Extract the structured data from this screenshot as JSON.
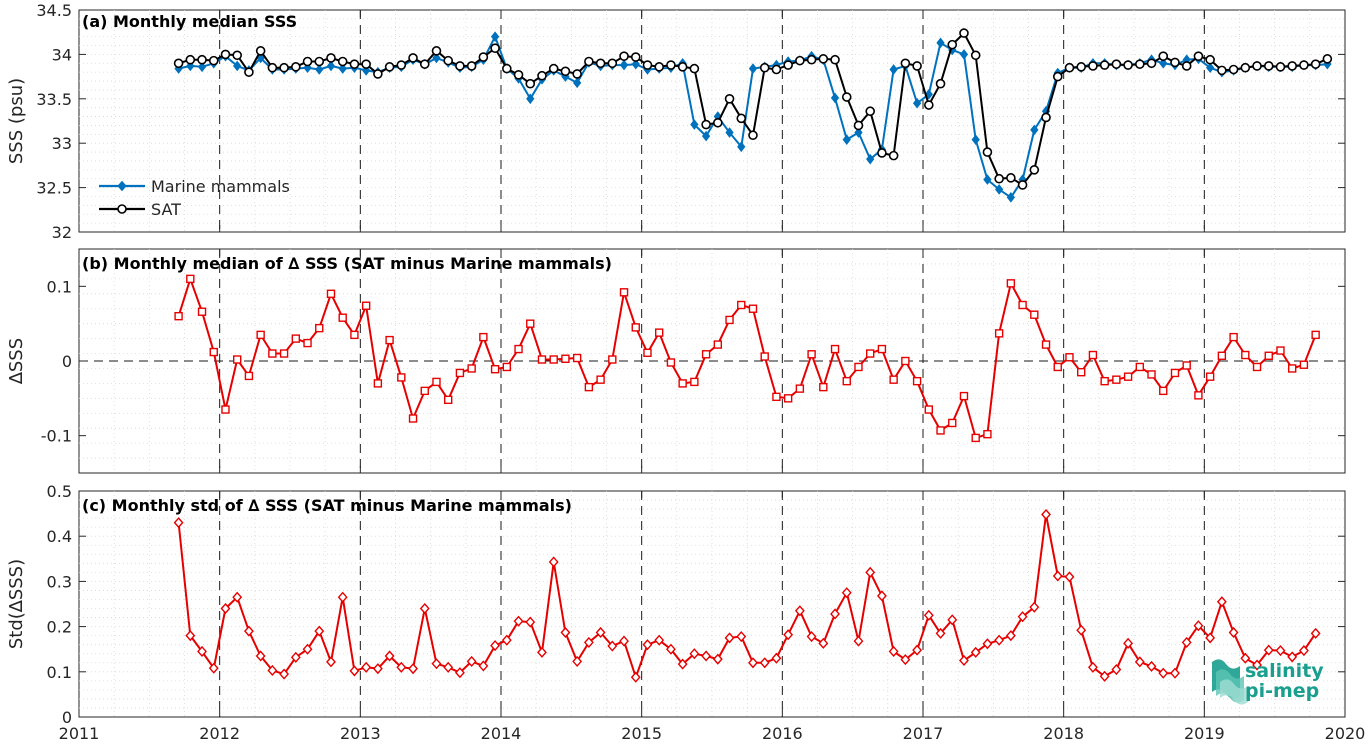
{
  "logo": {
    "line1": "salinity",
    "line2": "pi-mep"
  },
  "colors": {
    "marine": "#0072BD",
    "sat": "#000000",
    "delta": "#E60000",
    "grid": "#d8d8d8",
    "logo": "#1a9e8e"
  },
  "chart_data": [
    {
      "type": "line",
      "title": "(a) Monthly median SSS",
      "xlabel": "",
      "ylabel": "SSS (psu)",
      "xlim": [
        2011,
        2020
      ],
      "ylim": [
        32,
        34.5
      ],
      "yticks": [
        32,
        32.5,
        33,
        33.5,
        34,
        34.5
      ],
      "ytick_labels": [
        "32",
        "32.5",
        "33",
        "33.5",
        "34",
        "34.5"
      ],
      "legend": "bottom-left",
      "grid": true,
      "x_start": 2011.708,
      "x_step_months": 1,
      "series": [
        {
          "name": "Marine mammals",
          "marker": "diamond-filled",
          "values": [
            33.84,
            33.87,
            33.86,
            33.9,
            33.98,
            33.87,
            33.82,
            33.96,
            33.83,
            33.83,
            33.84,
            33.85,
            33.83,
            33.87,
            33.84,
            33.85,
            33.82,
            33.8,
            33.85,
            33.86,
            33.94,
            33.89,
            33.96,
            33.91,
            33.85,
            33.86,
            33.94,
            34.2,
            33.84,
            33.73,
            33.5,
            33.72,
            33.82,
            33.75,
            33.68,
            33.91,
            33.87,
            33.88,
            33.88,
            33.89,
            33.83,
            33.84,
            33.85,
            33.9,
            33.21,
            33.08,
            33.3,
            33.12,
            32.96,
            33.84,
            33.86,
            33.88,
            33.92,
            33.93,
            33.98,
            33.94,
            33.51,
            33.04,
            33.12,
            32.82,
            32.93,
            33.83,
            33.87,
            33.45,
            33.55,
            34.13,
            34.05,
            34.0,
            33.04,
            32.59,
            32.48,
            32.39,
            32.59,
            33.15,
            33.36,
            33.79,
            33.85,
            33.85,
            33.9,
            33.9,
            33.88,
            33.88,
            33.9,
            33.94,
            33.9,
            33.88,
            33.94,
            33.95,
            33.85,
            33.8,
            33.82,
            33.85,
            33.87,
            33.86,
            33.86,
            33.86,
            33.88,
            33.88,
            33.89
          ]
        },
        {
          "name": "SAT",
          "marker": "circle-open",
          "values": [
            33.9,
            33.94,
            33.94,
            33.93,
            34.0,
            33.99,
            33.8,
            34.04,
            33.85,
            33.85,
            33.86,
            33.92,
            33.92,
            33.96,
            33.92,
            33.89,
            33.89,
            33.78,
            33.86,
            33.88,
            33.96,
            33.89,
            34.04,
            33.93,
            33.87,
            33.87,
            33.97,
            34.07,
            33.84,
            33.77,
            33.67,
            33.76,
            33.84,
            33.81,
            33.78,
            33.92,
            33.9,
            33.9,
            33.98,
            33.97,
            33.88,
            33.86,
            33.88,
            33.86,
            33.84,
            33.21,
            33.23,
            33.5,
            33.28,
            33.09,
            33.85,
            33.83,
            33.88,
            33.93,
            33.94,
            33.95,
            33.94,
            33.52,
            33.2,
            33.36,
            32.89,
            32.86,
            33.9,
            33.87,
            33.43,
            33.67,
            34.11,
            34.24,
            33.99,
            32.9,
            32.6,
            32.61,
            32.53,
            32.7,
            33.29,
            33.75,
            33.85,
            33.86,
            33.87,
            33.88,
            33.89,
            33.88,
            33.89,
            33.9,
            33.98,
            33.91,
            33.87,
            33.98,
            33.94,
            33.82,
            33.83,
            33.85,
            33.87,
            33.87,
            33.86,
            33.87,
            33.88,
            33.89,
            33.95
          ]
        }
      ]
    },
    {
      "type": "line",
      "title": "(b) Monthly median of ∆ SSS (SAT minus Marine mammals)",
      "xlabel": "",
      "ylabel": "∆SSS",
      "xlim": [
        2011,
        2020
      ],
      "ylim": [
        -0.15,
        0.15
      ],
      "yticks": [
        -0.1,
        0,
        0.1
      ],
      "ytick_labels": [
        "-0.1",
        "0",
        "0.1"
      ],
      "reference_line": 0,
      "grid": true,
      "x_start": 2011.708,
      "x_step_months": 1,
      "series": [
        {
          "name": "",
          "marker": "square-open",
          "values": [
            0.06,
            0.11,
            0.066,
            0.012,
            -0.065,
            0.002,
            -0.02,
            0.035,
            0.01,
            0.01,
            0.03,
            0.024,
            0.044,
            0.09,
            0.058,
            0.035,
            0.074,
            -0.03,
            0.028,
            -0.022,
            -0.077,
            -0.04,
            -0.028,
            -0.052,
            -0.016,
            -0.01,
            0.032,
            -0.011,
            -0.008,
            0.016,
            0.05,
            0.002,
            0.002,
            0.003,
            0.004,
            -0.035,
            -0.025,
            0.002,
            0.092,
            0.045,
            0.011,
            0.038,
            -0.002,
            -0.03,
            -0.028,
            0.009,
            0.022,
            0.055,
            0.075,
            0.07,
            0.006,
            -0.048,
            -0.05,
            -0.037,
            0.009,
            -0.035,
            0.016,
            -0.027,
            -0.008,
            0.01,
            0.016,
            -0.025,
            0.0,
            -0.027,
            -0.065,
            -0.093,
            -0.083,
            -0.047,
            -0.103,
            -0.098,
            0.037,
            0.104,
            0.075,
            0.062,
            0.022,
            -0.008,
            0.005,
            -0.015,
            0.008,
            -0.027,
            -0.025,
            -0.021,
            -0.008,
            -0.018,
            -0.04,
            -0.016,
            -0.006,
            -0.046,
            -0.021,
            0.007,
            0.032,
            0.008,
            -0.008,
            0.007,
            0.014,
            -0.01,
            -0.005,
            0.035
          ]
        }
      ]
    },
    {
      "type": "line",
      "title": "(c) Monthly std of ∆ SSS (SAT minus Marine mammals)",
      "xlabel": "",
      "ylabel": "Std(∆SSS)",
      "xlim": [
        2011,
        2020
      ],
      "ylim": [
        0,
        0.5
      ],
      "yticks": [
        0,
        0.1,
        0.2,
        0.3,
        0.4,
        0.5
      ],
      "ytick_labels": [
        "0",
        "0.1",
        "0.2",
        "0.3",
        "0.4",
        "0.5"
      ],
      "xticks": [
        2011,
        2012,
        2013,
        2014,
        2015,
        2016,
        2017,
        2018,
        2019,
        2020
      ],
      "xtick_labels": [
        "2011",
        "2012",
        "2013",
        "2014",
        "2015",
        "2016",
        "2017",
        "2018",
        "2019",
        "2020"
      ],
      "grid": true,
      "x_start": 2011.708,
      "x_step_months": 1,
      "series": [
        {
          "name": "",
          "marker": "diamond-open",
          "values": [
            0.43,
            0.18,
            0.145,
            0.108,
            0.24,
            0.265,
            0.19,
            0.135,
            0.103,
            0.095,
            0.132,
            0.15,
            0.19,
            0.122,
            0.265,
            0.102,
            0.11,
            0.107,
            0.135,
            0.11,
            0.107,
            0.24,
            0.118,
            0.11,
            0.098,
            0.123,
            0.113,
            0.158,
            0.17,
            0.212,
            0.21,
            0.143,
            0.343,
            0.187,
            0.123,
            0.165,
            0.187,
            0.157,
            0.168,
            0.088,
            0.16,
            0.17,
            0.15,
            0.117,
            0.14,
            0.135,
            0.128,
            0.175,
            0.178,
            0.12,
            0.12,
            0.13,
            0.182,
            0.235,
            0.178,
            0.163,
            0.228,
            0.275,
            0.168,
            0.32,
            0.268,
            0.145,
            0.127,
            0.148,
            0.225,
            0.185,
            0.215,
            0.125,
            0.143,
            0.162,
            0.17,
            0.18,
            0.222,
            0.243,
            0.448,
            0.312,
            0.31,
            0.192,
            0.11,
            0.09,
            0.105,
            0.163,
            0.122,
            0.112,
            0.097,
            0.097,
            0.165,
            0.202,
            0.175,
            0.255,
            0.187,
            0.13,
            0.115,
            0.148,
            0.147,
            0.133,
            0.147,
            0.185
          ]
        }
      ]
    }
  ]
}
